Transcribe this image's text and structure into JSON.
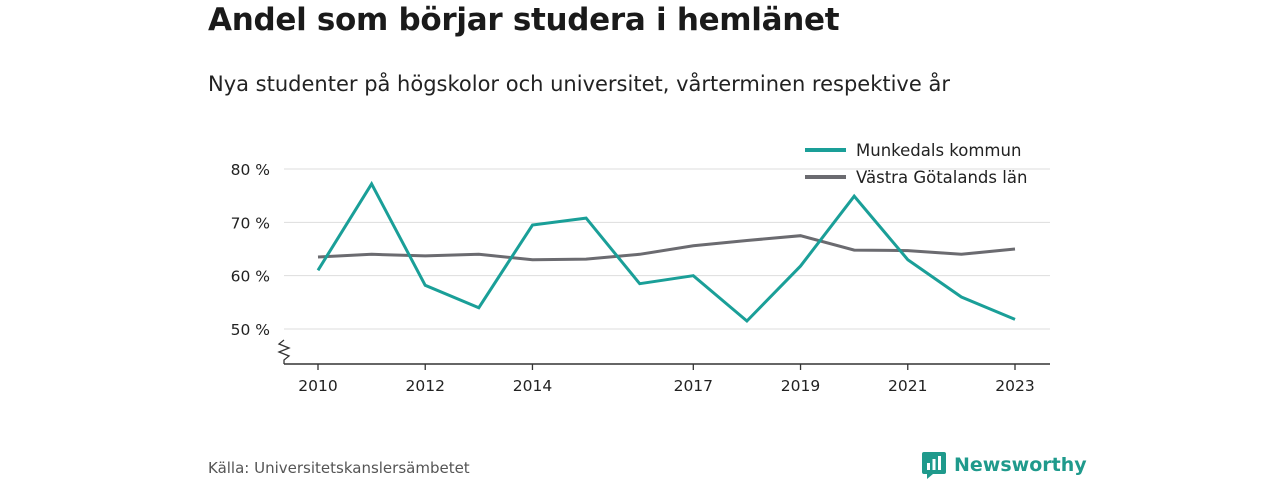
{
  "header": {
    "title": "Andel som börjar studera i hemlänet",
    "subtitle": "Nya studenter på högskolor och universitet, vårterminen respektive år"
  },
  "footer": {
    "source": "Källa: Universitetskanslersämbetet",
    "brand": "Newsworthy",
    "brand_icon": "newsworthy-logo-icon"
  },
  "colors": {
    "munkedal": "#1a9f98",
    "vastra_gotaland": "#6b6b70",
    "grid": "#dddddd",
    "axis": "#333333",
    "brand": "#1f9a8c"
  },
  "chart_data": {
    "type": "line",
    "title": "Andel som börjar studera i hemlänet",
    "subtitle": "Nya studenter på högskolor och universitet, vårterminen respektive år",
    "x": [
      2010,
      2011,
      2012,
      2013,
      2014,
      2015,
      2016,
      2017,
      2018,
      2019,
      2020,
      2021,
      2022,
      2023
    ],
    "xticks": [
      2010,
      2012,
      2014,
      2017,
      2019,
      2021,
      2023
    ],
    "ylim": [
      43.5,
      82
    ],
    "yticks": [
      50,
      60,
      70,
      80
    ],
    "ytick_labels": [
      "50 %",
      "60 %",
      "70 %",
      "80 %"
    ],
    "axis_break": true,
    "grid": true,
    "legend_position": "top-right",
    "series": [
      {
        "name": "Munkedals kommun",
        "color": "#1a9f98",
        "values": [
          61.0,
          77.2,
          58.2,
          54.0,
          69.5,
          70.8,
          58.5,
          60.0,
          51.5,
          61.8,
          74.9,
          63.0,
          56.0,
          51.8
        ]
      },
      {
        "name": "Västra Götalands län",
        "color": "#6b6b70",
        "values": [
          63.5,
          64.0,
          63.7,
          64.0,
          63.0,
          63.1,
          64.0,
          65.6,
          66.6,
          67.5,
          64.8,
          64.7,
          64.0,
          65.0
        ]
      }
    ]
  }
}
